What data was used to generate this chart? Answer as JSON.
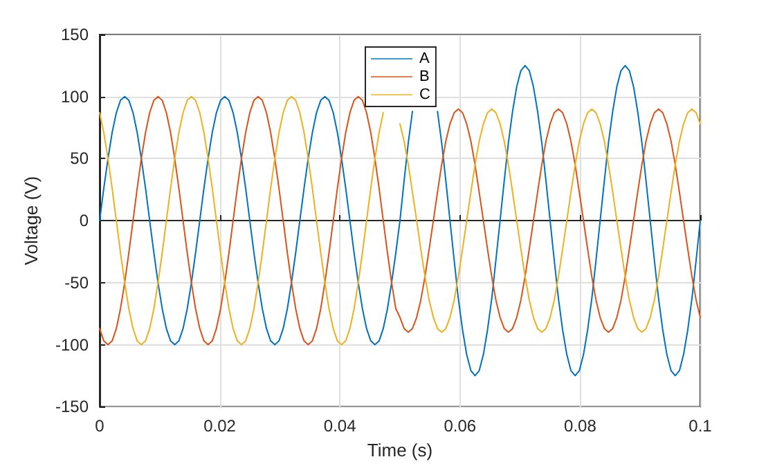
{
  "chart_data": {
    "type": "line",
    "xlabel": "Time (s)",
    "ylabel": "Voltage (V)",
    "xlim": [
      0,
      0.1
    ],
    "ylim": [
      -150,
      150
    ],
    "xticks": [
      0,
      0.02,
      0.04,
      0.06,
      0.08,
      0.1
    ],
    "yticks": [
      -150,
      -100,
      -50,
      0,
      50,
      100,
      150
    ],
    "grid": true,
    "legend": "top",
    "marker": "none",
    "line_style": "solid",
    "x": [
      0,
      0.00069,
      0.00139,
      0.00208,
      0.00278,
      0.00347,
      0.00417,
      0.00486,
      0.00556,
      0.00625,
      0.00694,
      0.00764,
      0.00833,
      0.00903,
      0.00972,
      0.01042,
      0.01111,
      0.01181,
      0.0125,
      0.01319,
      0.01389,
      0.01458,
      0.01528,
      0.01597,
      0.01667,
      0.01736,
      0.01806,
      0.01875,
      0.01944,
      0.02014,
      0.02083,
      0.02153,
      0.02222,
      0.02292,
      0.02361,
      0.02431,
      0.025,
      0.02569,
      0.02639,
      0.02708,
      0.02778,
      0.02847,
      0.02917,
      0.02986,
      0.03056,
      0.03125,
      0.03194,
      0.03264,
      0.03333,
      0.03403,
      0.03472,
      0.03542,
      0.03611,
      0.03681,
      0.0375,
      0.03819,
      0.03889,
      0.03958,
      0.04028,
      0.04097,
      0.04167,
      0.04236,
      0.04306,
      0.04375,
      0.04444,
      0.04514,
      0.04583,
      0.04653,
      0.04722,
      0.04792,
      0.04861,
      0.04931,
      0.05,
      0.05069,
      0.05139,
      0.05208,
      0.05278,
      0.05347,
      0.05417,
      0.05486,
      0.05556,
      0.05625,
      0.05694,
      0.05764,
      0.05833,
      0.05903,
      0.05972,
      0.06042,
      0.06111,
      0.06181,
      0.0625,
      0.06319,
      0.06389,
      0.06458,
      0.06528,
      0.06597,
      0.06667,
      0.06736,
      0.06806,
      0.06875,
      0.06944,
      0.07014,
      0.07083,
      0.07153,
      0.07222,
      0.07292,
      0.07361,
      0.07431,
      0.075,
      0.07569,
      0.07639,
      0.07708,
      0.07778,
      0.07847,
      0.07917,
      0.07986,
      0.08056,
      0.08125,
      0.08194,
      0.08264,
      0.08333,
      0.08403,
      0.08472,
      0.08542,
      0.08611,
      0.08681,
      0.0875,
      0.08819,
      0.08889,
      0.08958,
      0.09028,
      0.09097,
      0.09167,
      0.09236,
      0.09306,
      0.09375,
      0.09444,
      0.09514,
      0.09583,
      0.09653,
      0.09722,
      0.09792,
      0.09861,
      0.09931,
      0.1
    ],
    "series": [
      {
        "name": "A",
        "color": "#0072bd",
        "values": [
          0,
          26,
          50,
          71,
          87,
          97,
          100,
          97,
          87,
          71,
          50,
          26,
          0,
          -26,
          -50,
          -71,
          -87,
          -97,
          -100,
          -97,
          -87,
          -71,
          -50,
          -26,
          0,
          26,
          50,
          71,
          87,
          97,
          100,
          97,
          87,
          71,
          50,
          26,
          0,
          -26,
          -50,
          -71,
          -87,
          -97,
          -100,
          -97,
          -87,
          -71,
          -50,
          -26,
          0,
          26,
          50,
          71,
          87,
          97,
          100,
          97,
          87,
          71,
          50,
          26,
          0,
          -26,
          -50,
          -71,
          -87,
          -97,
          -100,
          -97,
          -87,
          -71,
          -50,
          -26,
          0,
          32,
          63,
          88,
          null,
          null,
          null,
          null,
          null,
          88,
          63,
          32,
          0,
          -32,
          -63,
          -88,
          -108,
          -121,
          -125,
          -121,
          -108,
          -88,
          -63,
          -32,
          0,
          32,
          63,
          88,
          108,
          121,
          125,
          121,
          108,
          88,
          63,
          32,
          0,
          -32,
          -63,
          -88,
          -108,
          -121,
          -125,
          -121,
          -108,
          -88,
          -63,
          -32,
          0,
          32,
          63,
          88,
          108,
          121,
          125,
          121,
          108,
          88,
          63,
          32,
          0,
          -32,
          -63,
          -88,
          -108,
          -121,
          -125,
          -121,
          -108,
          -88,
          -63,
          -32,
          0
        ]
      },
      {
        "name": "B",
        "color": "#d95319",
        "values": [
          -87,
          -97,
          -100,
          -97,
          -87,
          -71,
          -50,
          -26,
          0,
          26,
          50,
          71,
          87,
          97,
          100,
          97,
          87,
          71,
          50,
          26,
          0,
          -26,
          -50,
          -71,
          -87,
          -97,
          -100,
          -97,
          -87,
          -71,
          -50,
          -26,
          0,
          26,
          50,
          71,
          87,
          97,
          100,
          97,
          87,
          71,
          50,
          26,
          0,
          -26,
          -50,
          -71,
          -87,
          -97,
          -100,
          -97,
          -87,
          -71,
          -50,
          -26,
          0,
          26,
          50,
          71,
          87,
          97,
          100,
          97,
          87,
          71,
          50,
          26,
          0,
          -26,
          -50,
          -71,
          -78,
          -87,
          -90,
          -87,
          -78,
          -64,
          -45,
          -23,
          0,
          23,
          45,
          64,
          78,
          87,
          90,
          87,
          78,
          64,
          45,
          23,
          0,
          -23,
          -45,
          -64,
          -78,
          -87,
          -90,
          -87,
          -78,
          -64,
          -45,
          -23,
          0,
          23,
          45,
          64,
          78,
          87,
          90,
          87,
          78,
          64,
          45,
          23,
          0,
          -23,
          -45,
          -64,
          -78,
          -87,
          -90,
          -87,
          -78,
          -64,
          -45,
          -23,
          0,
          23,
          45,
          64,
          78,
          87,
          90,
          87,
          78,
          64,
          45,
          23,
          0,
          -23,
          -45,
          -64,
          -78
        ]
      },
      {
        "name": "C",
        "color": "#edb120",
        "values": [
          87,
          71,
          50,
          26,
          0,
          -26,
          -50,
          -71,
          -87,
          -97,
          -100,
          -97,
          -87,
          -71,
          -50,
          -26,
          0,
          26,
          50,
          71,
          87,
          97,
          100,
          97,
          87,
          71,
          50,
          26,
          0,
          -26,
          -50,
          -71,
          -87,
          -97,
          -100,
          -97,
          -87,
          -71,
          -50,
          -26,
          0,
          26,
          50,
          71,
          87,
          97,
          100,
          97,
          87,
          71,
          50,
          26,
          0,
          -26,
          -50,
          -71,
          -87,
          -97,
          -100,
          -97,
          -87,
          -71,
          -50,
          -26,
          0,
          26,
          50,
          71,
          87,
          null,
          null,
          null,
          78,
          64,
          45,
          23,
          0,
          -23,
          -45,
          -64,
          -78,
          -87,
          -90,
          -87,
          -78,
          -64,
          -45,
          -23,
          0,
          23,
          45,
          64,
          78,
          87,
          90,
          87,
          78,
          64,
          45,
          23,
          0,
          -23,
          -45,
          -64,
          -78,
          -87,
          -90,
          -87,
          -78,
          -64,
          -45,
          -23,
          0,
          23,
          45,
          64,
          78,
          87,
          90,
          87,
          78,
          64,
          45,
          23,
          0,
          -23,
          -45,
          -64,
          -78,
          -87,
          -90,
          -87,
          -78,
          -64,
          -45,
          -23,
          0,
          23,
          45,
          64,
          78,
          87,
          90,
          87,
          78
        ]
      }
    ]
  }
}
